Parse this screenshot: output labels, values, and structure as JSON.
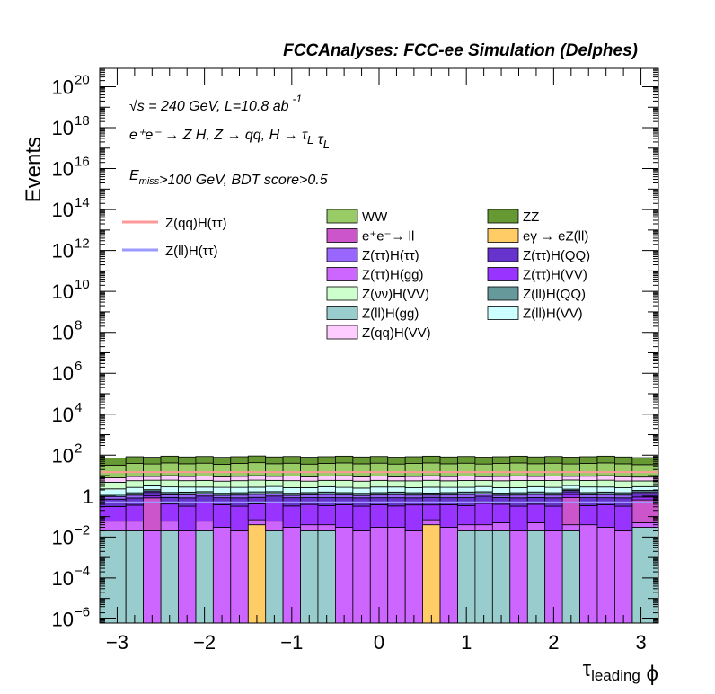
{
  "chart_data": {
    "type": "bar",
    "title": "FCCAnalyses: FCC-ee Simulation (Delphes)",
    "xlabel": "τ_leading ϕ",
    "ylabel": "Events",
    "xlim": [
      -3.2,
      3.2
    ],
    "ylim_log10": [
      -6.2,
      20.9
    ],
    "log_y": true,
    "grid": false,
    "legend_position": "upper middle",
    "x_ticks": [
      -3,
      -2,
      -1,
      0,
      1,
      2,
      3
    ],
    "x_tick_labels": [
      "−3",
      "−2",
      "−1",
      "0",
      "1",
      "2",
      "3"
    ],
    "y_tick_labels": [
      {
        "exp": -6,
        "text": "10",
        "sup": "−6"
      },
      {
        "exp": -4,
        "text": "10",
        "sup": "−4"
      },
      {
        "exp": -2,
        "text": "10",
        "sup": "−2"
      },
      {
        "exp": 0,
        "text": "1",
        "sup": ""
      },
      {
        "exp": 2,
        "text": "10",
        "sup": "2"
      },
      {
        "exp": 4,
        "text": "10",
        "sup": "4"
      },
      {
        "exp": 6,
        "text": "10",
        "sup": "6"
      },
      {
        "exp": 8,
        "text": "10",
        "sup": "8"
      },
      {
        "exp": 10,
        "text": "10",
        "sup": "10"
      },
      {
        "exp": 12,
        "text": "10",
        "sup": "12"
      },
      {
        "exp": 14,
        "text": "10",
        "sup": "14"
      },
      {
        "exp": 16,
        "text": "10",
        "sup": "16"
      },
      {
        "exp": 18,
        "text": "10",
        "sup": "18"
      },
      {
        "exp": 20,
        "text": "10",
        "sup": "20"
      }
    ],
    "annotations": [
      {
        "text": "√s = 240 GeV, L=10.8 ab",
        "sup": "-1"
      },
      {
        "text": "e⁺e⁻ → Z H, Z → qq, H → τ_L τ_L",
        "sup": ""
      },
      {
        "text": "E_miss>100 GeV, BDT score>0.5",
        "sup": ""
      }
    ],
    "bin_edges": [
      -3.2,
      -2.9,
      -2.7,
      -2.5,
      -2.3,
      -2.1,
      -1.9,
      -1.7,
      -1.5,
      -1.3,
      -1.1,
      -0.9,
      -0.7,
      -0.5,
      -0.3,
      -0.1,
      0.1,
      0.3,
      0.5,
      0.7,
      0.9,
      1.1,
      1.3,
      1.5,
      1.7,
      1.9,
      2.1,
      2.3,
      2.5,
      2.7,
      2.9,
      3.2
    ],
    "stacked_series": [
      {
        "name": "Z(ll)H(gg)",
        "color": "#99cccc",
        "values": [
          0.02,
          0.02,
          1e-07,
          0.02,
          1e-07,
          0.02,
          1e-07,
          1e-07,
          1e-07,
          0.02,
          1e-07,
          0.02,
          0.02,
          1e-07,
          1e-07,
          1e-07,
          1e-07,
          1e-07,
          1e-07,
          1e-07,
          0.02,
          0.02,
          0.02,
          1e-07,
          0.02,
          1e-07,
          0.02,
          1e-07,
          1e-07,
          1e-07,
          0.03
        ]
      },
      {
        "name": "eγ → eZ(ll)",
        "color": "#ffcc66",
        "values": [
          1e-07,
          1e-07,
          1e-07,
          1e-07,
          1e-07,
          1e-07,
          1e-07,
          1e-07,
          0.04,
          1e-07,
          1e-07,
          1e-07,
          1e-07,
          1e-07,
          1e-07,
          1e-07,
          1e-07,
          1e-07,
          0.04,
          1e-07,
          1e-07,
          1e-07,
          1e-07,
          1e-07,
          1e-07,
          1e-07,
          1e-07,
          1e-07,
          1e-07,
          1e-07,
          1e-07
        ]
      },
      {
        "name": "Z(ττ)H(gg)",
        "color": "#cc66ff",
        "values": [
          0.04,
          0.04,
          0.02,
          0.04,
          0.02,
          0.04,
          0.03,
          0.02,
          0.03,
          0.04,
          0.03,
          0.02,
          0.02,
          0.03,
          0.02,
          0.03,
          0.03,
          0.02,
          0.03,
          0.03,
          0.02,
          0.02,
          0.03,
          0.02,
          0.03,
          0.02,
          0.02,
          0.04,
          0.03,
          0.02,
          0.02
        ]
      },
      {
        "name": "e⁺e⁻→ ll",
        "color": "#cc55cc",
        "values": [
          1e-07,
          1e-07,
          0.8,
          1e-07,
          1e-07,
          1e-07,
          1e-07,
          1e-07,
          1e-07,
          1e-07,
          1e-07,
          1e-07,
          1e-07,
          1e-07,
          1e-07,
          1e-07,
          1e-07,
          1e-07,
          1e-07,
          1e-07,
          1e-07,
          1e-07,
          1e-07,
          1e-07,
          1e-07,
          1e-07,
          0.8,
          1e-07,
          1e-07,
          1e-07,
          0.6
        ]
      },
      {
        "name": "Z(ττ)H(VV)",
        "color": "#9933ff",
        "values": [
          0.25,
          0.3,
          0.2,
          0.35,
          0.3,
          0.4,
          0.35,
          0.3,
          0.35,
          0.4,
          0.3,
          0.35,
          0.3,
          0.35,
          0.3,
          0.35,
          0.3,
          0.35,
          0.3,
          0.35,
          0.3,
          0.4,
          0.35,
          0.3,
          0.35,
          0.3,
          0.35,
          0.3,
          0.35,
          0.3,
          0.25
        ]
      },
      {
        "name": "Z(ττ)H(QQ)",
        "color": "#6633cc",
        "values": [
          0.4,
          0.45,
          0.5,
          0.45,
          0.5,
          0.55,
          0.45,
          0.5,
          0.45,
          0.55,
          0.5,
          0.45,
          0.5,
          0.45,
          0.5,
          0.45,
          0.5,
          0.45,
          0.5,
          0.45,
          0.5,
          0.55,
          0.45,
          0.5,
          0.45,
          0.5,
          0.45,
          0.5,
          0.45,
          0.5,
          0.45
        ]
      },
      {
        "name": "Z(ττ)H(ττ)",
        "color": "#9966ff",
        "values": [
          0.25,
          0.3,
          0.25,
          0.3,
          0.35,
          0.3,
          0.25,
          0.3,
          0.35,
          0.3,
          0.25,
          0.3,
          0.35,
          0.3,
          0.25,
          0.3,
          0.35,
          0.3,
          0.25,
          0.3,
          0.35,
          0.3,
          0.25,
          0.3,
          0.35,
          0.3,
          0.25,
          0.3,
          0.35,
          0.3,
          0.25
        ]
      },
      {
        "name": "Z(ll)H(QQ)",
        "color": "#669999",
        "values": [
          0.3,
          0.35,
          0.3,
          0.35,
          0.4,
          0.35,
          0.3,
          0.35,
          0.4,
          0.35,
          0.3,
          0.35,
          0.4,
          0.35,
          0.3,
          0.35,
          0.4,
          0.35,
          0.3,
          0.35,
          0.4,
          0.35,
          0.3,
          0.35,
          0.4,
          0.35,
          0.3,
          0.35,
          0.4,
          0.35,
          0.3
        ]
      },
      {
        "name": "Z(ll)H(VV)",
        "color": "#ccffff",
        "values": [
          1.0,
          1.2,
          1.1,
          1.3,
          1.2,
          1.1,
          1.3,
          1.2,
          1.1,
          1.3,
          1.2,
          1.1,
          1.3,
          1.2,
          1.1,
          1.3,
          1.2,
          1.1,
          1.3,
          1.2,
          1.1,
          1.3,
          1.2,
          1.1,
          1.3,
          1.2,
          1.1,
          1.3,
          1.2,
          1.1,
          1.0
        ]
      },
      {
        "name": "Z(νν)H(VV)",
        "color": "#ccffcc",
        "values": [
          2.5,
          3.0,
          2.8,
          3.2,
          2.9,
          3.1,
          2.7,
          3.0,
          3.3,
          2.9,
          3.1,
          2.8,
          3.0,
          3.2,
          2.9,
          3.1,
          2.8,
          3.0,
          3.2,
          2.9,
          3.1,
          2.8,
          3.0,
          3.2,
          2.9,
          3.1,
          2.8,
          3.0,
          3.2,
          2.9,
          2.6
        ]
      },
      {
        "name": "Z(qq)H(VV)",
        "color": "#ffccff",
        "values": [
          3.0,
          3.5,
          3.2,
          4.0,
          3.4,
          3.8,
          3.2,
          3.6,
          4.0,
          3.4,
          3.8,
          3.2,
          3.6,
          4.0,
          3.4,
          3.8,
          3.2,
          3.6,
          4.0,
          3.4,
          3.8,
          3.2,
          3.6,
          4.0,
          3.4,
          3.8,
          3.2,
          3.6,
          4.0,
          3.4,
          3.0
        ]
      },
      {
        "name": "WW",
        "color": "#99cc66",
        "values": [
          25,
          30,
          28,
          32,
          29,
          31,
          27,
          30,
          33,
          29,
          31,
          28,
          30,
          32,
          29,
          31,
          28,
          30,
          32,
          29,
          31,
          28,
          30,
          32,
          29,
          31,
          28,
          30,
          32,
          29,
          26
        ]
      },
      {
        "name": "ZZ",
        "color": "#669933",
        "values": [
          40,
          45,
          42,
          48,
          44,
          46,
          43,
          45,
          49,
          44,
          46,
          43,
          45,
          48,
          44,
          46,
          43,
          45,
          48,
          44,
          46,
          43,
          45,
          48,
          44,
          46,
          43,
          45,
          48,
          44,
          41
        ]
      }
    ],
    "overlay_series": [
      {
        "name": "Z(qq)H(ττ)",
        "color": "#ff9999",
        "values": [
          15,
          15,
          15,
          15,
          15,
          15,
          15,
          15,
          15,
          15,
          15,
          15,
          15,
          15,
          15,
          15,
          15,
          15,
          15,
          15,
          15,
          15,
          15,
          15,
          15,
          15,
          15,
          15,
          15,
          15,
          15
        ]
      },
      {
        "name": "Z(ll)H(ττ)",
        "color": "#9999ff",
        "values": [
          0.5,
          0.5,
          0.5,
          0.5,
          0.5,
          0.5,
          0.5,
          0.5,
          0.5,
          0.5,
          0.5,
          0.5,
          0.5,
          0.5,
          0.5,
          0.5,
          0.5,
          0.5,
          0.5,
          0.5,
          0.5,
          0.5,
          0.5,
          0.5,
          0.5,
          0.5,
          0.5,
          0.5,
          0.5,
          0.5,
          0.5
        ]
      }
    ],
    "legend_stacked_order": [
      "WW",
      "ZZ",
      "e⁺e⁻→ ll",
      "eγ → eZ(ll)",
      "Z(ττ)H(ττ)",
      "Z(ττ)H(QQ)",
      "Z(ττ)H(gg)",
      "Z(ττ)H(VV)",
      "Z(νν)H(VV)",
      "Z(ll)H(QQ)",
      "Z(ll)H(gg)",
      "Z(ll)H(VV)",
      "Z(qq)H(VV)"
    ]
  }
}
